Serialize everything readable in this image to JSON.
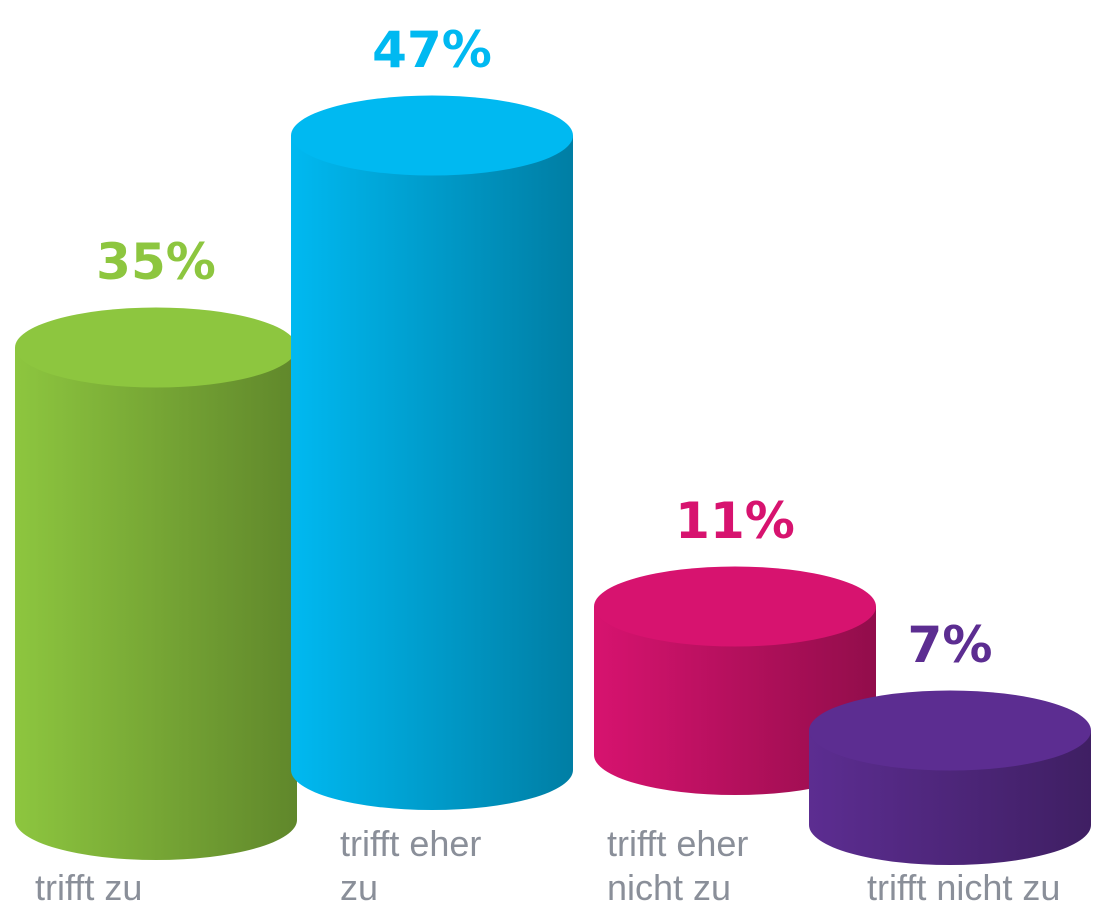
{
  "chart_data": {
    "type": "cylinder",
    "categories": [
      "trifft zu",
      "trifft eher zu",
      "trifft eher nicht zu",
      "trifft nicht zu"
    ],
    "values": [
      35,
      47,
      11,
      7
    ],
    "value_labels": [
      "35%",
      "47%",
      "11%",
      "7%"
    ],
    "colors": [
      "#8dc63f",
      "#00b9f1",
      "#d7136f",
      "#5c2d91"
    ]
  }
}
